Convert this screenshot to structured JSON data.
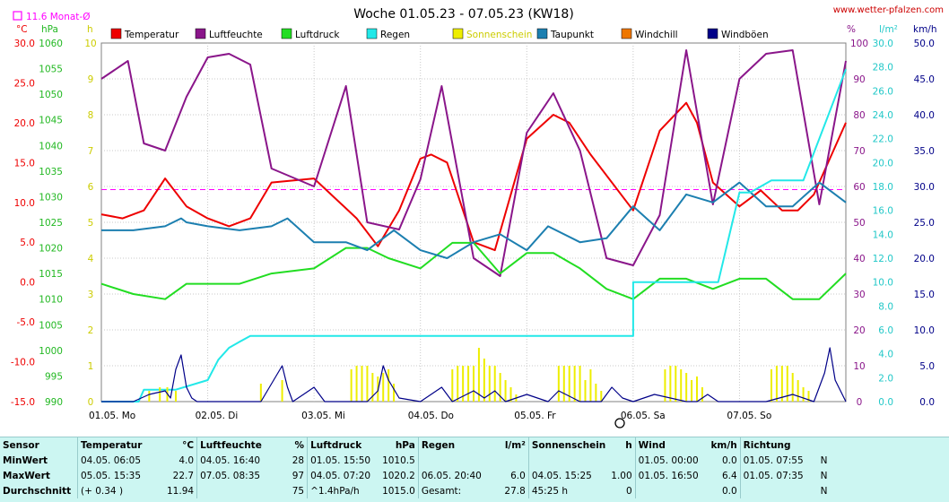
{
  "header": {
    "title": "Woche 01.05.23 - 07.05.23 (KW18)",
    "site": "www.wetter-pfalzen.com",
    "monthly_avg": "11.6 Monat-Ø"
  },
  "legend": [
    {
      "label": "Temperatur",
      "color": "#ee0000"
    },
    {
      "label": "Luftfeuchte",
      "color": "#8a168a"
    },
    {
      "label": "Luftdruck",
      "color": "#22dd22"
    },
    {
      "label": "Regen",
      "color": "#22e8e8"
    },
    {
      "label": "Sonnenschein",
      "color": "#eeee00"
    },
    {
      "label": "Taupunkt",
      "color": "#1c7fb0"
    },
    {
      "label": "Windchill",
      "color": "#ee7700"
    },
    {
      "label": "Windböen",
      "color": "#000088"
    }
  ],
  "chart_data": {
    "type": "line",
    "x_labels": [
      "01.05. Mo",
      "02.05. Di",
      "03.05. Mi",
      "04.05. Do",
      "05.05. Fr",
      "06.05. Sa",
      "07.05. So"
    ],
    "axes": {
      "temperature": {
        "unit": "°C",
        "ticks": [
          "30.0",
          "25.0",
          "20.0",
          "15.0",
          "10.0",
          "5.0",
          "0.0",
          "-5.0",
          "-10.0",
          "-15.0"
        ],
        "range": [
          -15,
          30
        ]
      },
      "pressure": {
        "unit": "hPa",
        "ticks": [
          "1060",
          "1055",
          "1050",
          "1045",
          "1040",
          "1035",
          "1030",
          "1025",
          "1020",
          "1015",
          "1010",
          "1005",
          "1000",
          "995",
          "990"
        ],
        "range": [
          990,
          1060
        ]
      },
      "sunshine": {
        "unit": "h",
        "ticks": [
          "10",
          "9",
          "8",
          "7",
          "6",
          "5",
          "4",
          "3",
          "2",
          "1",
          "0"
        ],
        "range": [
          0,
          10
        ]
      },
      "humidity": {
        "unit": "%",
        "ticks": [
          "100",
          "90",
          "80",
          "70",
          "60",
          "50",
          "40",
          "30",
          "20",
          "10",
          "0"
        ],
        "range": [
          0,
          100
        ]
      },
      "rain": {
        "unit": "l/m²",
        "ticks": [
          "30.0",
          "28.0",
          "26.0",
          "24.0",
          "22.0",
          "20.0",
          "18.0",
          "16.0",
          "14.0",
          "12.0",
          "10.0",
          "8.0",
          "6.0",
          "4.0",
          "2.0",
          "0.0"
        ],
        "range": [
          0,
          30
        ]
      },
      "wind": {
        "unit": "km/h",
        "ticks": [
          "50.0",
          "45.0",
          "40.0",
          "35.0",
          "30.0",
          "25.0",
          "20.0",
          "15.0",
          "10.0",
          "5.0",
          "0.0"
        ],
        "range": [
          0,
          50
        ]
      }
    },
    "monthly_avg_temp": 11.6,
    "series": [
      {
        "name": "Temperatur",
        "axis": "temperature",
        "color": "#ee0000",
        "x": [
          0,
          0.2,
          0.4,
          0.6,
          0.8,
          1.0,
          1.2,
          1.4,
          1.6,
          2.0,
          2.4,
          2.6,
          2.8,
          3.0,
          3.1,
          3.25,
          3.5,
          3.7,
          4.0,
          4.25,
          4.4,
          4.6,
          5.0,
          5.25,
          5.5,
          5.6,
          5.75,
          6.0,
          6.2,
          6.4,
          6.55,
          6.7,
          6.9,
          7.0
        ],
        "values": [
          8.5,
          8.0,
          9.0,
          13.0,
          9.5,
          8.0,
          7.0,
          8.0,
          12.5,
          13.0,
          8.0,
          4.5,
          9.0,
          15.5,
          16.0,
          15.0,
          5.0,
          4.0,
          18.0,
          21.0,
          20.0,
          16.0,
          9.0,
          19.0,
          22.5,
          20.0,
          12.5,
          9.5,
          11.5,
          9.0,
          9.0,
          11.0,
          17.0,
          20.0
        ]
      },
      {
        "name": "Luftfeuchte",
        "axis": "humidity",
        "color": "#8a168a",
        "x": [
          0,
          0.25,
          0.4,
          0.6,
          0.8,
          1.0,
          1.2,
          1.4,
          1.6,
          2.0,
          2.3,
          2.5,
          2.8,
          3.0,
          3.2,
          3.5,
          3.75,
          4.0,
          4.25,
          4.5,
          4.75,
          5.0,
          5.25,
          5.5,
          5.75,
          6.0,
          6.25,
          6.5,
          6.75,
          7.0
        ],
        "values": [
          90,
          95,
          72,
          70,
          85,
          96,
          97,
          94,
          65,
          60,
          88,
          50,
          48,
          62,
          88,
          40,
          35,
          75,
          86,
          70,
          40,
          38,
          52,
          98,
          55,
          90,
          97,
          98,
          55,
          95
        ]
      },
      {
        "name": "Luftdruck",
        "axis": "pressure",
        "color": "#22dd22",
        "x": [
          0,
          0.3,
          0.6,
          0.8,
          1.0,
          1.3,
          1.6,
          2.0,
          2.3,
          2.5,
          2.7,
          3.0,
          3.3,
          3.5,
          3.75,
          4.0,
          4.25,
          4.5,
          4.75,
          5.0,
          5.25,
          5.5,
          5.75,
          6.0,
          6.25,
          6.5,
          6.75,
          7.0
        ],
        "values": [
          1013,
          1011,
          1010,
          1013,
          1013,
          1013,
          1015,
          1016,
          1020,
          1020,
          1018,
          1016,
          1021,
          1021,
          1015,
          1019,
          1019,
          1016,
          1012,
          1010,
          1014,
          1014,
          1012,
          1014,
          1014,
          1010,
          1010,
          1015
        ]
      },
      {
        "name": "Taupunkt",
        "axis": "temperature",
        "color": "#1c7fb0",
        "x": [
          0,
          0.3,
          0.6,
          0.75,
          0.8,
          1.0,
          1.3,
          1.6,
          1.75,
          2.0,
          2.3,
          2.5,
          2.75,
          3.0,
          3.25,
          3.5,
          3.75,
          4.0,
          4.2,
          4.5,
          4.75,
          5.0,
          5.25,
          5.5,
          5.75,
          6.0,
          6.25,
          6.5,
          6.75,
          7.0
        ],
        "values": [
          6.5,
          6.5,
          7.0,
          8.0,
          7.5,
          7.0,
          6.5,
          7.0,
          8.0,
          5.0,
          5.0,
          4.0,
          6.5,
          4.0,
          3.0,
          5.0,
          6.0,
          4.0,
          7.0,
          5.0,
          5.5,
          9.5,
          6.5,
          11.0,
          10.0,
          12.5,
          9.5,
          9.5,
          12.5,
          10.0
        ]
      },
      {
        "name": "Regen",
        "axis": "rain",
        "color": "#22e8e8",
        "x": [
          0,
          0.35,
          0.4,
          0.7,
          1.0,
          1.1,
          1.2,
          1.3,
          1.4,
          1.5,
          5.0,
          5.0,
          5.4,
          5.6,
          5.8,
          6.0,
          6.1,
          6.3,
          6.6,
          7.0
        ],
        "values": [
          0,
          0,
          1.0,
          1.0,
          1.8,
          3.5,
          4.5,
          5.0,
          5.5,
          5.5,
          5.5,
          10.0,
          10.0,
          10.0,
          10.0,
          17.5,
          17.5,
          18.5,
          18.5,
          27.8
        ]
      },
      {
        "name": "Sonnenschein",
        "axis": "sunshine",
        "color": "#eeee00",
        "type": "bar",
        "x": [
          0.45,
          0.55,
          0.62,
          0.7,
          1.5,
          1.7,
          2.35,
          2.4,
          2.45,
          2.5,
          2.55,
          2.6,
          2.65,
          2.7,
          2.75,
          3.3,
          3.35,
          3.4,
          3.45,
          3.5,
          3.55,
          3.6,
          3.65,
          3.7,
          3.75,
          3.8,
          3.85,
          3.9,
          4.3,
          4.35,
          4.4,
          4.45,
          4.5,
          4.55,
          4.6,
          4.65,
          4.7,
          5.3,
          5.35,
          5.4,
          5.45,
          5.5,
          5.55,
          5.6,
          5.65,
          6.3,
          6.35,
          6.4,
          6.45,
          6.5,
          6.55,
          6.6,
          6.65
        ],
        "values": [
          0.3,
          0.4,
          0.4,
          0.3,
          0.5,
          0.6,
          0.9,
          1.0,
          1.0,
          1.0,
          0.8,
          0.7,
          0.8,
          0.9,
          0.5,
          0.9,
          1.0,
          1.0,
          1.0,
          1.0,
          1.5,
          1.2,
          1.0,
          1.0,
          0.8,
          0.6,
          0.4,
          0.2,
          1.0,
          1.0,
          1.0,
          1.0,
          1.0,
          0.6,
          0.9,
          0.5,
          0.3,
          0.9,
          1.0,
          1.0,
          0.9,
          0.8,
          0.6,
          0.7,
          0.4,
          0.9,
          1.0,
          1.0,
          1.0,
          0.8,
          0.6,
          0.4,
          0.3
        ]
      },
      {
        "name": "Windböen",
        "axis": "wind",
        "color": "#000088",
        "x": [
          0,
          0.3,
          0.45,
          0.6,
          0.65,
          0.7,
          0.75,
          0.8,
          0.85,
          0.9,
          1.0,
          1.3,
          1.5,
          1.7,
          1.75,
          1.8,
          1.9,
          2.0,
          2.1,
          2.3,
          2.5,
          2.6,
          2.65,
          2.7,
          2.8,
          3.0,
          3.2,
          3.3,
          3.5,
          3.6,
          3.7,
          3.8,
          4.0,
          4.2,
          4.3,
          4.5,
          4.7,
          4.8,
          4.9,
          5.0,
          5.2,
          5.5,
          5.6,
          5.7,
          5.8,
          6.0,
          6.25,
          6.5,
          6.7,
          6.8,
          6.85,
          6.9,
          7.0
        ],
        "values": [
          0,
          0,
          1.0,
          1.5,
          0.5,
          4.5,
          6.5,
          2.0,
          0.5,
          0,
          0,
          0,
          0,
          5.0,
          2.0,
          0,
          1.0,
          2.0,
          0,
          0,
          0,
          1.5,
          5.0,
          3.0,
          0.5,
          0,
          2.0,
          0,
          1.5,
          0.5,
          1.5,
          0,
          1.0,
          0,
          1.5,
          0,
          0,
          2.0,
          0.5,
          0,
          1.0,
          0,
          0,
          1.0,
          0,
          0,
          0,
          1.0,
          0,
          4.0,
          7.5,
          3.0,
          0
        ]
      }
    ]
  },
  "stats": {
    "headers": [
      "Sensor",
      "Temperatur",
      "°C",
      "Luftfeuchte",
      "%",
      "Luftdruck",
      "hPa",
      "Regen",
      "l/m²",
      "Sonnenschein",
      "h",
      "Wind",
      "km/h",
      "Richtung",
      ""
    ],
    "rows": [
      [
        "MinWert",
        "04.05.  06:05",
        "4.0",
        "04.05.  16:40",
        "28",
        "01.05.  15:50",
        "1010.5",
        "",
        "",
        "",
        "",
        "01.05.  00:00",
        "0.0",
        "01.05.  07:55",
        "N"
      ],
      [
        "MaxWert",
        "05.05.  15:35",
        "22.7",
        "07.05.  08:35",
        "97",
        "04.05.  07:20",
        "1020.2",
        "06.05.  20:40",
        "6.0",
        "04.05.  15:25",
        "1.00",
        "01.05.  16:50",
        "6.4",
        "01.05.  07:35",
        "N"
      ],
      [
        "Durchschnitt",
        "(+ 0.34 )",
        "11.94",
        "",
        "75",
        "^1.4hPa/h",
        "1015.0",
        "Gesamt:",
        "27.8",
        "45:25 h",
        "0",
        "",
        "0.0",
        "",
        "N"
      ]
    ]
  }
}
